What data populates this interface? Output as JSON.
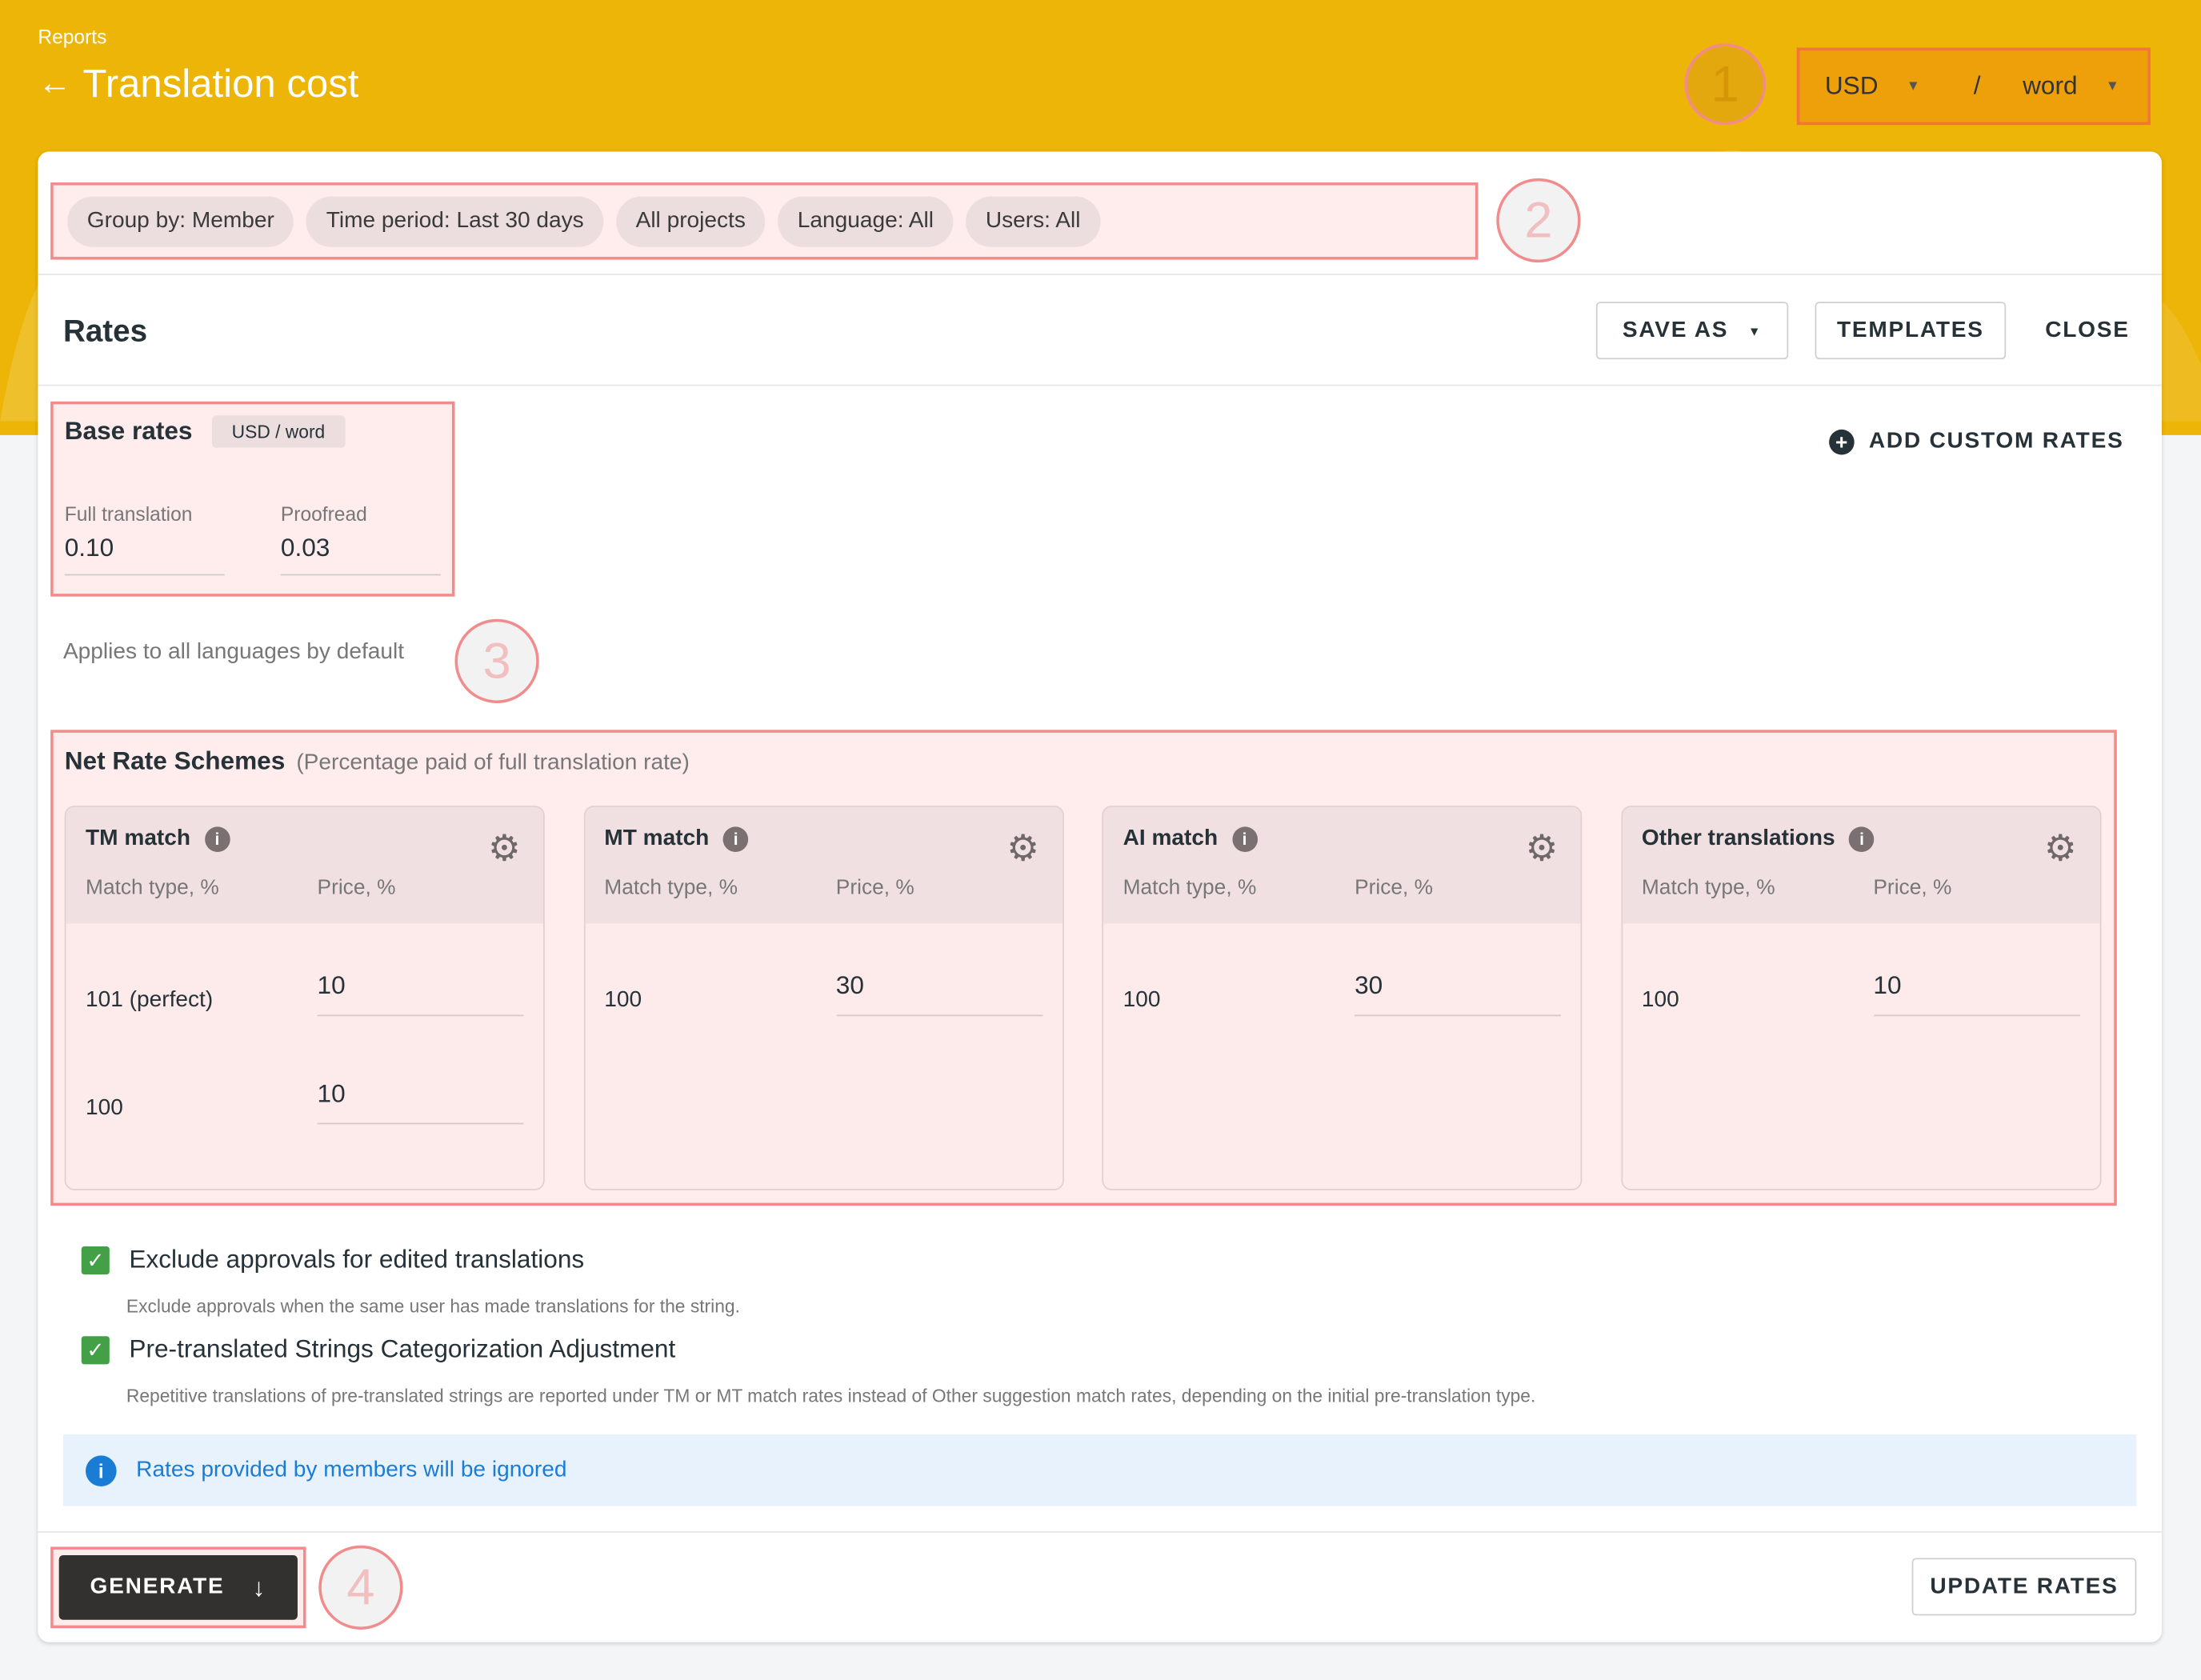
{
  "header": {
    "breadcrumb": "Reports",
    "title": "Translation cost",
    "back_icon": "arrow-left-icon",
    "currency": "USD",
    "separator": "/",
    "unit": "word"
  },
  "filters": [
    "Group by: Member",
    "Time period: Last 30 days",
    "All projects",
    "Language: All",
    "Users: All"
  ],
  "rates": {
    "title": "Rates",
    "save_as": "SAVE AS",
    "templates": "TEMPLATES",
    "close": "CLOSE",
    "add_custom": "ADD CUSTOM RATES"
  },
  "base_rates": {
    "title": "Base rates",
    "unit_tag": "USD / word",
    "full_label": "Full translation",
    "full_value": "0.10",
    "proof_label": "Proofread",
    "proof_value": "0.03",
    "applies": "Applies to all languages by default"
  },
  "net": {
    "title": "Net Rate Schemes",
    "subtitle": "(Percentage paid of full translation rate)",
    "col_match": "Match type, %",
    "col_price": "Price, %",
    "schemes": [
      {
        "name": "TM match",
        "rows": [
          {
            "match": "101 (perfect)",
            "price": "10"
          },
          {
            "match": "100",
            "price": "10"
          }
        ]
      },
      {
        "name": "MT match",
        "rows": [
          {
            "match": "100",
            "price": "30"
          }
        ]
      },
      {
        "name": "AI match",
        "rows": [
          {
            "match": "100",
            "price": "30"
          }
        ]
      },
      {
        "name": "Other translations",
        "rows": [
          {
            "match": "100",
            "price": "10"
          }
        ]
      }
    ]
  },
  "options": [
    {
      "label": "Exclude approvals for edited translations",
      "desc": "Exclude approvals when the same user has made translations for the string.",
      "checked": true
    },
    {
      "label": "Pre-translated Strings Categorization Adjustment",
      "desc": "Repetitive translations of pre-translated strings are reported under TM or MT match rates instead of Other suggestion match rates, depending on the initial pre-translation type.",
      "checked": true
    }
  ],
  "notice": "Rates provided by members will be ignored",
  "footer": {
    "generate": "GENERATE",
    "update": "UPDATE RATES"
  },
  "markers": [
    "1",
    "2",
    "3",
    "4"
  ],
  "colors": {
    "header": "#ecb507",
    "highlight": "#f28b8b",
    "check": "#43a047",
    "info": "#1b7cd6",
    "generate": "#333030"
  }
}
